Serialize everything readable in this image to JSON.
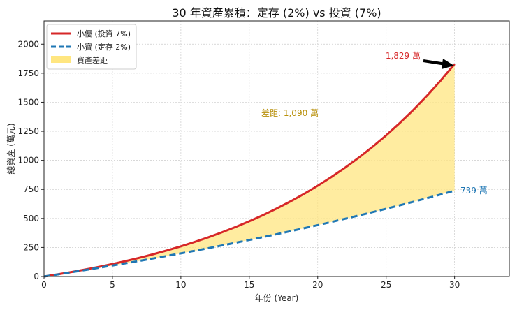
{
  "chart_data": {
    "type": "line",
    "title": "30 年資產累積：定存 (2%) vs 投資 (7%)",
    "xlabel": "年份 (Year)",
    "ylabel": "總資產 (萬元)",
    "xlim": [
      0,
      34
    ],
    "ylim": [
      0,
      2200
    ],
    "xticks": [
      0,
      5,
      10,
      15,
      20,
      25,
      30
    ],
    "yticks": [
      0,
      250,
      500,
      750,
      1000,
      1250,
      1500,
      1750,
      2000
    ],
    "grid": true,
    "legend_position": "top-left",
    "x": [
      0,
      1,
      2,
      3,
      4,
      5,
      6,
      7,
      8,
      9,
      10,
      11,
      12,
      13,
      14,
      15,
      16,
      17,
      18,
      19,
      20,
      21,
      22,
      23,
      24,
      25,
      26,
      27,
      28,
      29,
      30
    ],
    "series": [
      {
        "name": "小優 (投資 7%)",
        "color": "#d62728",
        "style": "solid",
        "values": [
          0,
          18.6,
          38.5,
          59.9,
          82.8,
          107.4,
          133.7,
          162.0,
          192.3,
          224.8,
          259.6,
          297.0,
          337.1,
          380.0,
          426.1,
          475.5,
          528.4,
          585.2,
          646.1,
          711.4,
          781.4,
          856.5,
          937.0,
          1023.3,
          1115.9,
          1215.1,
          1321.6,
          1435.7,
          1558.1,
          1689.3,
          1829
        ]
      },
      {
        "name": "小寶 (定存 2%)",
        "color": "#1f77b4",
        "style": "dashed",
        "values": [
          0,
          18.2,
          36.7,
          55.6,
          74.9,
          94.6,
          114.6,
          135.1,
          156.0,
          177.3,
          199.1,
          221.3,
          243.9,
          267.0,
          290.5,
          314.6,
          339.1,
          364.1,
          389.6,
          415.6,
          442.2,
          469.3,
          496.9,
          525.1,
          553.9,
          583.2,
          613.1,
          643.7,
          674.8,
          706.6,
          739
        ]
      }
    ],
    "fill": {
      "name": "資產差距",
      "color": "#ffe680"
    },
    "annotations": {
      "invest_end": "1,829 萬",
      "save_end": "739 萬",
      "gap": "差距: 1,090 萬"
    },
    "annotation_colors": {
      "invest_end": "#d62728",
      "save_end": "#1f77b4",
      "gap": "#b8900a"
    }
  }
}
